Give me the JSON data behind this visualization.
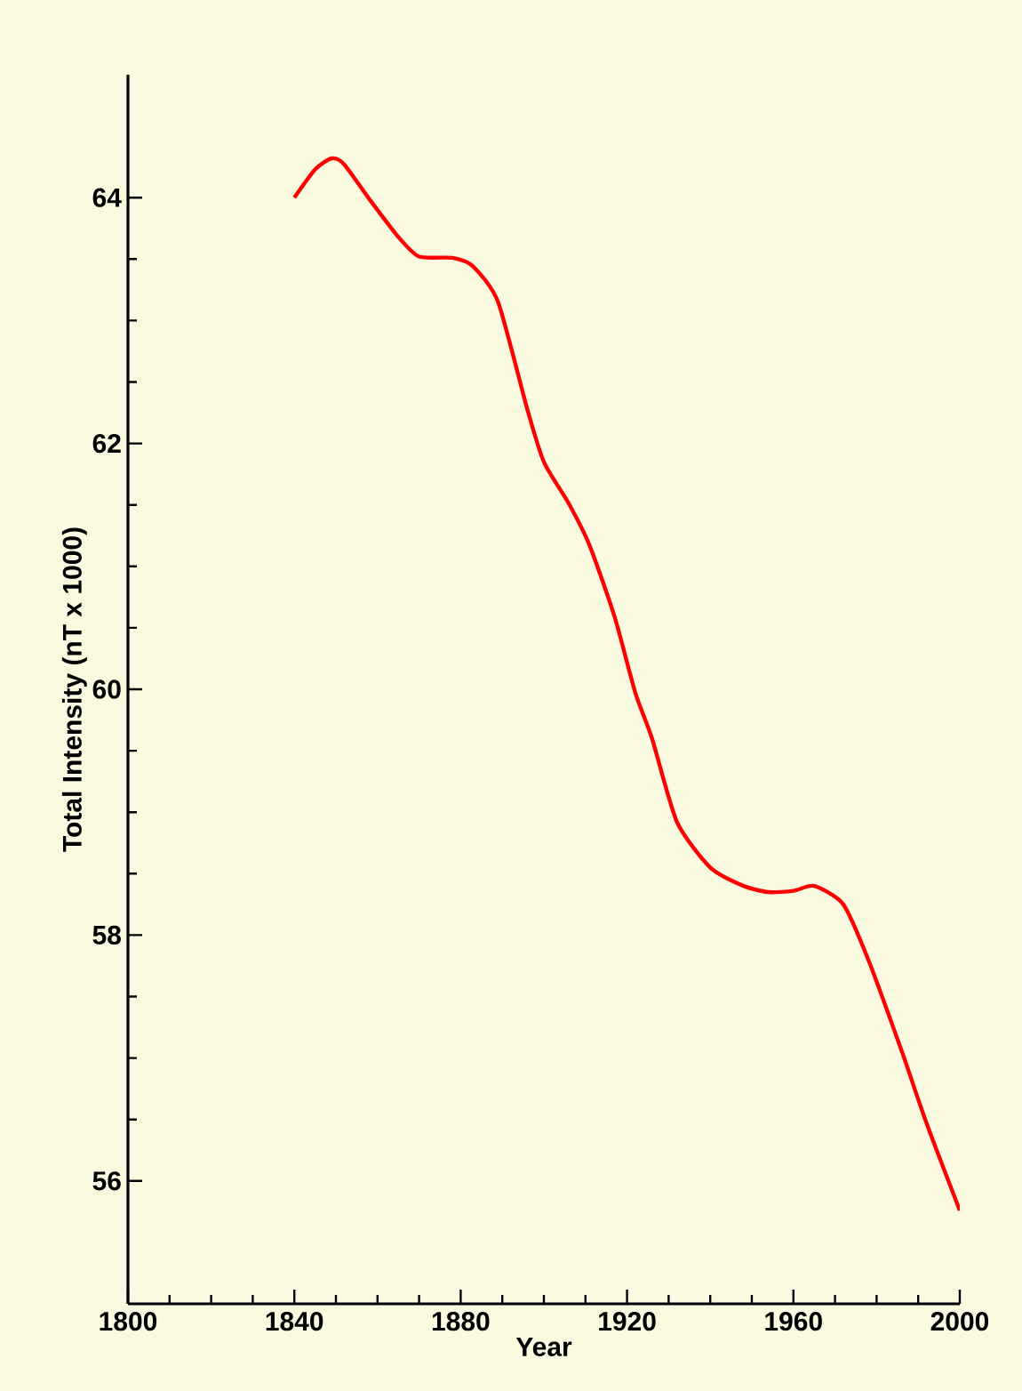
{
  "chart_data": {
    "type": "line",
    "xlabel": "Year",
    "ylabel": "Total Intensity (nT x 1000)",
    "series": [
      {
        "color": "#ff0000",
        "x": [
          1840,
          1845,
          1849,
          1852,
          1858,
          1865,
          1870,
          1878,
          1883,
          1889,
          1896,
          1900,
          1906,
          1911,
          1917,
          1922,
          1926,
          1932,
          1940,
          1948,
          1954,
          1960,
          1965,
          1972,
          1978,
          1986,
          1992,
          2000
        ],
        "values": [
          64.0,
          64.23,
          64.32,
          64.27,
          63.99,
          63.68,
          63.52,
          63.51,
          63.44,
          63.15,
          62.28,
          61.85,
          61.51,
          61.17,
          60.59,
          59.97,
          59.6,
          58.92,
          58.55,
          58.4,
          58.35,
          58.36,
          58.4,
          58.25,
          57.8,
          57.06,
          56.47,
          55.76
        ]
      }
    ],
    "xlim": [
      1800,
      2000
    ],
    "xticks": [
      1800,
      1840,
      1880,
      1920,
      1960,
      2000
    ],
    "ylim": [
      55,
      65
    ],
    "yticks": [
      56,
      58,
      60,
      62,
      64
    ],
    "grid": false,
    "marker": "none",
    "line_style": "solid"
  }
}
